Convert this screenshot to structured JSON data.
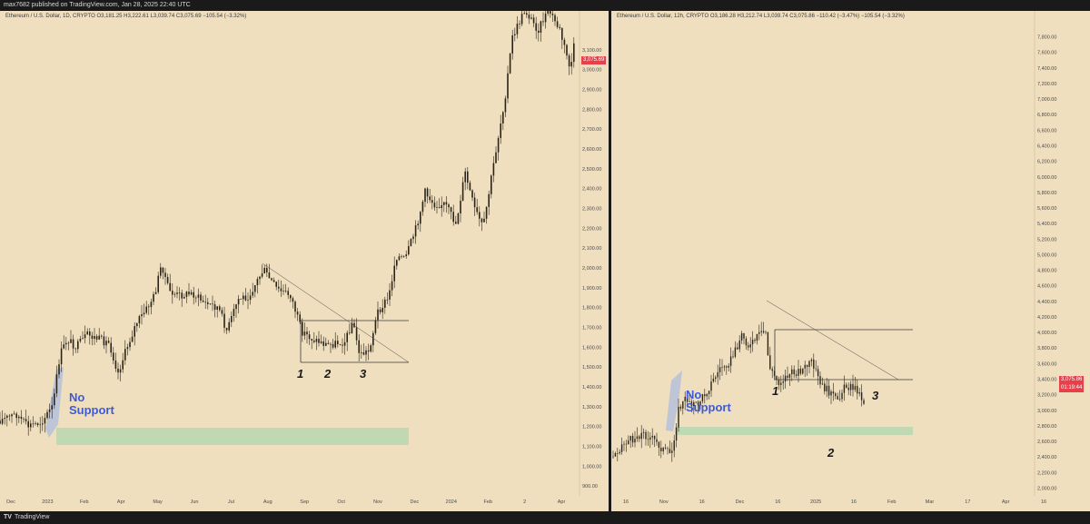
{
  "header": {
    "attribution": "max7682 published on TradingView.com, Jan 28, 2025 22:40 UTC"
  },
  "footer": {
    "logo": "TV",
    "brand": "TradingView"
  },
  "colors": {
    "bg": "#efdfbf",
    "candle": "#2a2418",
    "annotation": "#3b5bdb",
    "zone": "#b8d8b0",
    "price_tag": "#e8404a"
  },
  "chart_data": [
    {
      "type": "candlestick",
      "legend": "Ethereum / U.S. Dollar, 1D, CRYPTO  O3,181.25  H3,222.61  L3,039.74  C3,075.69  −105.54 (−3.32%)",
      "current_price_label": "3,075.69",
      "x_ticks": [
        "Dec",
        "2023",
        "Feb",
        "Apr",
        "May",
        "Jun",
        "Jul",
        "Aug",
        "Sep",
        "Oct",
        "Nov",
        "Dec",
        "2024",
        "Feb",
        "2",
        "Apr"
      ],
      "y_ticks": [
        "900.00",
        "1,000.00",
        "1,100.00",
        "1,200.00",
        "1,300.00",
        "1,400.00",
        "1,500.00",
        "1,600.00",
        "1,700.00",
        "1,800.00",
        "1,900.00",
        "2,000.00",
        "2,100.00",
        "2,200.00",
        "2,300.00",
        "2,400.00",
        "2,500.00",
        "2,600.00",
        "2,700.00",
        "2,800.00",
        "2,900.00",
        "3,000.00",
        "3,100.00"
      ],
      "ylim": [
        850,
        3200
      ],
      "price_path": [
        [
          0,
          1230
        ],
        [
          18,
          1260
        ],
        [
          30,
          1200
        ],
        [
          45,
          1220
        ],
        [
          58,
          1300
        ],
        [
          66,
          1560
        ],
        [
          74,
          1640
        ],
        [
          84,
          1600
        ],
        [
          96,
          1660
        ],
        [
          108,
          1640
        ],
        [
          120,
          1620
        ],
        [
          130,
          1470
        ],
        [
          140,
          1600
        ],
        [
          150,
          1720
        ],
        [
          160,
          1780
        ],
        [
          170,
          1860
        ],
        [
          178,
          2020
        ],
        [
          186,
          1880
        ],
        [
          196,
          1860
        ],
        [
          212,
          1870
        ],
        [
          226,
          1820
        ],
        [
          240,
          1800
        ],
        [
          250,
          1680
        ],
        [
          262,
          1840
        ],
        [
          274,
          1860
        ],
        [
          290,
          1990
        ],
        [
          305,
          1890
        ],
        [
          320,
          1860
        ],
        [
          332,
          1680
        ],
        [
          344,
          1640
        ],
        [
          360,
          1610
        ],
        [
          380,
          1630
        ],
        [
          388,
          1730
        ],
        [
          396,
          1560
        ],
        [
          406,
          1580
        ],
        [
          416,
          1780
        ],
        [
          428,
          1850
        ],
        [
          436,
          2060
        ],
        [
          446,
          2040
        ],
        [
          458,
          2200
        ],
        [
          468,
          2380
        ],
        [
          478,
          2320
        ],
        [
          490,
          2320
        ],
        [
          502,
          2220
        ],
        [
          512,
          2480
        ],
        [
          522,
          2300
        ],
        [
          532,
          2200
        ],
        [
          544,
          2540
        ],
        [
          556,
          2860
        ],
        [
          564,
          3160
        ],
        [
          578,
          3300
        ],
        [
          592,
          3200
        ],
        [
          604,
          3300
        ],
        [
          616,
          3200
        ],
        [
          628,
          3000
        ],
        [
          634,
          3180
        ]
      ],
      "annotations": {
        "labels": [
          "1",
          "2",
          "3"
        ],
        "text_line1": "No",
        "text_line2": "Support"
      }
    },
    {
      "type": "candlestick",
      "legend": "Ethereum / U.S. Dollar, 12h, CRYPTO  O3,186.28  H3,212.74  L3,039.74  C3,075.86  −110.42 (−3.47%)  −105.54 (−3.32%)",
      "current_price_label": "3,075.86",
      "countdown_label": "01:19:44",
      "x_ticks": [
        "16",
        "Nov",
        "16",
        "Dec",
        "16",
        "2025",
        "16",
        "Feb",
        "Mar",
        "17",
        "Apr",
        "16"
      ],
      "y_ticks": [
        "2,000.00",
        "2,200.00",
        "2,400.00",
        "2,600.00",
        "2,800.00",
        "3,000.00",
        "3,200.00",
        "3,400.00",
        "3,600.00",
        "3,800.00",
        "4,000.00",
        "4,200.00",
        "4,400.00",
        "4,600.00",
        "4,800.00",
        "5,000.00",
        "5,200.00",
        "5,400.00",
        "5,600.00",
        "5,800.00",
        "6,000.00",
        "6,200.00",
        "6,400.00",
        "6,600.00",
        "6,800.00",
        "7,000.00",
        "7,200.00",
        "7,400.00",
        "7,600.00",
        "7,800.00"
      ],
      "ylim": [
        1900,
        7900
      ],
      "price_path": [
        [
          2,
          2400
        ],
        [
          12,
          2560
        ],
        [
          24,
          2640
        ],
        [
          34,
          2700
        ],
        [
          46,
          2620
        ],
        [
          56,
          2500
        ],
        [
          66,
          2420
        ],
        [
          74,
          3000
        ],
        [
          82,
          3150
        ],
        [
          94,
          3060
        ],
        [
          106,
          3260
        ],
        [
          120,
          3540
        ],
        [
          132,
          3650
        ],
        [
          144,
          3980
        ],
        [
          152,
          3800
        ],
        [
          162,
          3960
        ],
        [
          170,
          4000
        ],
        [
          174,
          3540
        ],
        [
          184,
          3350
        ],
        [
          196,
          3460
        ],
        [
          210,
          3520
        ],
        [
          222,
          3620
        ],
        [
          230,
          3320
        ],
        [
          240,
          3240
        ],
        [
          248,
          3120
        ],
        [
          258,
          3320
        ],
        [
          270,
          3280
        ],
        [
          280,
          3060
        ]
      ],
      "annotations": {
        "labels": [
          "1",
          "2",
          "3"
        ],
        "text_line1": "No",
        "text_line2": "Support"
      }
    }
  ]
}
